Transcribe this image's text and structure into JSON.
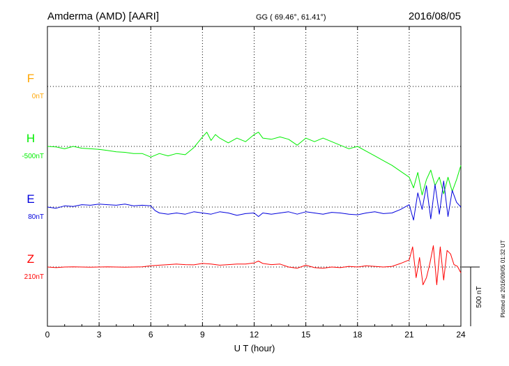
{
  "header": {
    "station": "Amderma (AMD)  [AARI]",
    "coords": "GG ( 69.46°,  61.41°)",
    "date": "2016/08/05"
  },
  "footer_note": "Plotted at 2016/09/05 01:32 UT",
  "scale_bar_label": "500 nT",
  "chart_data": {
    "type": "line",
    "xlabel": "U T (hour)",
    "xlim": [
      0,
      24
    ],
    "xticks": [
      0,
      3,
      6,
      9,
      12,
      15,
      18,
      21,
      24
    ],
    "xtick_labels": [
      "0",
      "3",
      "6",
      "9",
      "12",
      "15",
      "18",
      "21",
      "24"
    ],
    "grid": true,
    "series": [
      {
        "name": "F",
        "offset_label": "0nT",
        "color": "#ffa500",
        "x": [],
        "y": []
      },
      {
        "name": "H",
        "offset_label": "-500nT",
        "color": "#00ee00",
        "x": [
          0,
          0.5,
          1,
          1.5,
          2,
          2.5,
          3,
          3.5,
          4,
          4.5,
          5,
          5.5,
          6,
          6.5,
          7,
          7.5,
          8,
          8.5,
          9,
          9.25,
          9.5,
          9.75,
          10,
          10.5,
          11,
          11.5,
          12,
          12.25,
          12.5,
          13,
          13.5,
          14,
          14.5,
          15,
          15.5,
          16,
          16.5,
          17,
          17.5,
          18,
          18.5,
          19,
          19.5,
          20,
          20.5,
          21,
          21.25,
          21.5,
          21.75,
          22,
          22.25,
          22.5,
          22.75,
          23,
          23.25,
          23.5,
          23.75,
          24
        ],
        "y": [
          -500,
          -505,
          -520,
          -500,
          -515,
          -520,
          -525,
          -535,
          -545,
          -550,
          -560,
          -560,
          -590,
          -560,
          -580,
          -560,
          -570,
          -510,
          -420,
          -380,
          -450,
          -400,
          -430,
          -470,
          -430,
          -460,
          -400,
          -380,
          -430,
          -440,
          -420,
          -440,
          -490,
          -430,
          -460,
          -430,
          -460,
          -490,
          -520,
          -500,
          -540,
          -580,
          -620,
          -660,
          -710,
          -760,
          -850,
          -720,
          -910,
          -780,
          -700,
          -830,
          -760,
          -900,
          -760,
          -880,
          -780,
          -660
        ]
      },
      {
        "name": "E",
        "offset_label": "80nT",
        "color": "#0000dd",
        "x": [
          0,
          0.5,
          1,
          1.5,
          2,
          2.5,
          3,
          3.5,
          4,
          4.5,
          5,
          5.5,
          6,
          6.25,
          6.5,
          7,
          7.5,
          8,
          8.5,
          9,
          9.5,
          10,
          10.5,
          11,
          11.5,
          12,
          12.25,
          12.5,
          13,
          13.5,
          14,
          14.5,
          15,
          15.5,
          16,
          16.5,
          17,
          17.5,
          18,
          18.5,
          19,
          19.5,
          20,
          20.5,
          21,
          21.25,
          21.5,
          21.75,
          22,
          22.25,
          22.5,
          22.75,
          23,
          23.25,
          23.5,
          23.75,
          24
        ],
        "y": [
          80,
          70,
          90,
          85,
          100,
          95,
          105,
          100,
          95,
          105,
          90,
          95,
          90,
          50,
          30,
          20,
          30,
          20,
          40,
          30,
          20,
          40,
          30,
          10,
          25,
          30,
          0,
          30,
          20,
          30,
          40,
          20,
          40,
          30,
          20,
          35,
          30,
          20,
          15,
          30,
          40,
          25,
          30,
          60,
          100,
          -30,
          200,
          60,
          260,
          -20,
          270,
          20,
          300,
          0,
          220,
          120,
          80
        ]
      },
      {
        "name": "Z",
        "offset_label": "210nT",
        "color": "#ff0000",
        "x": [
          0,
          0.5,
          1,
          1.5,
          2,
          2.5,
          3,
          3.5,
          4,
          4.5,
          5,
          5.5,
          6,
          6.5,
          7,
          7.5,
          8,
          8.5,
          9,
          9.5,
          10,
          10.5,
          11,
          11.5,
          12,
          12.25,
          12.5,
          13,
          13.5,
          14,
          14.5,
          15,
          15.5,
          16,
          16.5,
          17,
          17.5,
          18,
          18.5,
          19,
          19.5,
          20,
          20.5,
          21,
          21.2,
          21.4,
          21.6,
          21.8,
          22,
          22.2,
          22.4,
          22.6,
          22.8,
          23,
          23.2,
          23.4,
          23.6,
          23.8,
          24
        ],
        "y": [
          210,
          205,
          210,
          212,
          210,
          208,
          210,
          212,
          210,
          208,
          210,
          212,
          220,
          225,
          230,
          235,
          230,
          228,
          240,
          235,
          225,
          230,
          235,
          235,
          245,
          260,
          240,
          230,
          235,
          210,
          200,
          225,
          205,
          200,
          210,
          205,
          215,
          210,
          220,
          215,
          210,
          215,
          240,
          270,
          380,
          120,
          290,
          60,
          120,
          240,
          390,
          60,
          380,
          100,
          350,
          320,
          230,
          215,
          160
        ]
      }
    ]
  }
}
